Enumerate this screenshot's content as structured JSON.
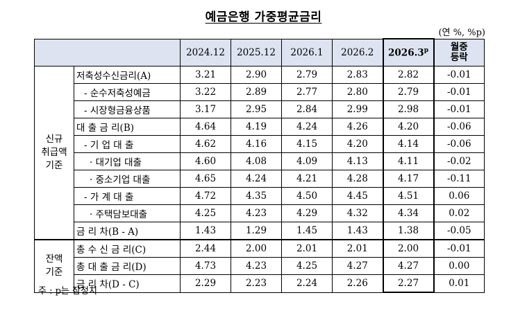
{
  "title": "예금은행 가중평균금리",
  "unit": "(연 %, %p)",
  "columns": [
    "2024.12",
    "2025.12",
    "2026.1",
    "2026.2",
    "2026.3",
    "월중\n등락"
  ],
  "latest_sup": "p",
  "change_header_line1": "월중",
  "change_header_line2": "등락",
  "groups": {
    "new": "신규\n취급액\n기준",
    "balance": "잔액\n기준"
  },
  "rows": [
    {
      "label": "저축성수신금리(A)",
      "values": [
        "3.21",
        "2.90",
        "2.79",
        "2.83",
        "2.82",
        "-0.01"
      ]
    },
    {
      "label": "- 순수저축성예금",
      "values": [
        "3.22",
        "2.89",
        "2.77",
        "2.80",
        "2.79",
        "-0.01"
      ]
    },
    {
      "label": "- 시장형금융상품",
      "values": [
        "3.17",
        "2.95",
        "2.84",
        "2.99",
        "2.98",
        "-0.01"
      ]
    },
    {
      "label": "대 출 금 리(B)",
      "values": [
        "4.64",
        "4.19",
        "4.24",
        "4.26",
        "4.20",
        "-0.06"
      ]
    },
    {
      "label": "- 기 업 대 출",
      "values": [
        "4.62",
        "4.16",
        "4.15",
        "4.20",
        "4.14",
        "-0.06"
      ]
    },
    {
      "label": "· 대기업 대출",
      "values": [
        "4.60",
        "4.08",
        "4.09",
        "4.13",
        "4.11",
        "-0.02"
      ]
    },
    {
      "label": "· 중소기업 대출",
      "values": [
        "4.65",
        "4.24",
        "4.21",
        "4.28",
        "4.17",
        "-0.11"
      ]
    },
    {
      "label": "- 가 계 대 출",
      "values": [
        "4.72",
        "4.35",
        "4.50",
        "4.45",
        "4.51",
        "0.06"
      ]
    },
    {
      "label": "· 주택담보대출",
      "values": [
        "4.25",
        "4.23",
        "4.29",
        "4.32",
        "4.34",
        "0.02"
      ]
    },
    {
      "label": "금 리 차(B - A)",
      "values": [
        "1.43",
        "1.29",
        "1.45",
        "1.43",
        "1.38",
        "-0.05"
      ]
    },
    {
      "label": "총 수 신 금 리(C)",
      "values": [
        "2.44",
        "2.00",
        "2.01",
        "2.01",
        "2.00",
        "-0.01"
      ]
    },
    {
      "label": "총 대 출 금 리(D)",
      "values": [
        "4.73",
        "4.23",
        "4.25",
        "4.27",
        "4.27",
        "0.00"
      ]
    },
    {
      "label": "금 리 차(D - C)",
      "values": [
        "2.29",
        "2.23",
        "2.24",
        "2.26",
        "2.27",
        "0.01"
      ]
    }
  ],
  "note": "주 : p는 잠정치"
}
